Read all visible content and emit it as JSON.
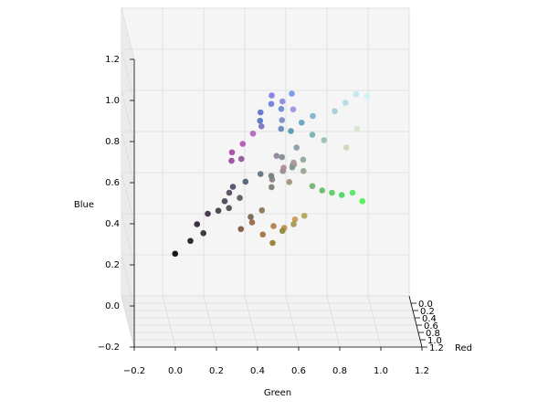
{
  "chart_data": {
    "type": "scatter3d",
    "xlabel": "Red",
    "ylabel": "Green",
    "zlabel": "Blue",
    "xlim": [
      -0.2,
      1.2
    ],
    "ylim": [
      -0.2,
      1.2
    ],
    "zlim": [
      -0.2,
      1.2
    ],
    "xticks": [
      {
        "value": 0,
        "label": "0.0"
      },
      0.2,
      0.4,
      0.6,
      0.8,
      {
        "value": 1,
        "label": "1.0"
      },
      1.2
    ],
    "yticks": [
      {
        "value": -0.2,
        "label": "−0.2"
      },
      {
        "value": 0,
        "label": "0.0"
      },
      0.2,
      0.4,
      0.6,
      0.8,
      {
        "value": 1,
        "label": "1.0"
      },
      1.2
    ],
    "zticks": [
      {
        "value": -0.2,
        "label": "−0.2"
      },
      {
        "value": 0,
        "label": "0.0"
      },
      0.2,
      0.4,
      0.6,
      0.8,
      {
        "value": 1,
        "label": "1.0"
      },
      1.2
    ],
    "grid": true,
    "color_mode": "rgb",
    "series": [
      {
        "x": [
          0.05,
          0.15,
          0.2,
          0.22,
          0.25,
          0.28,
          0.3,
          0.32,
          0.35,
          0.3,
          0.38,
          0.33,
          0.4,
          0.45,
          0.5,
          0.42,
          0.55,
          0.6,
          0.35,
          0.5,
          0.45,
          0.4,
          0.5,
          0.65,
          0.7,
          0.6,
          0.7,
          0.55,
          0.6,
          0.65,
          0.7,
          0.55,
          0.75,
          0.6,
          0.5,
          0.8,
          0.65,
          0.7,
          0.45,
          0.55,
          0.35,
          0.3,
          0.35,
          0.4,
          0.3,
          0.45,
          0.75,
          0.8,
          0.7,
          0.8,
          0.65,
          0.85,
          0.35,
          0.4,
          0.45,
          0.5,
          0.6,
          0.55,
          0.6,
          0.5,
          0.65,
          0.55,
          0.45,
          0.6,
          0.7,
          0.5,
          0.58,
          0.62,
          0.48,
          0.52,
          0.68,
          0.4,
          0.57
        ],
        "y": [
          0.05,
          0.12,
          0.15,
          0.18,
          0.2,
          0.25,
          0.28,
          0.3,
          0.3,
          0.32,
          0.35,
          0.38,
          0.45,
          0.5,
          0.5,
          0.55,
          0.55,
          0.6,
          0.45,
          0.45,
          0.6,
          0.55,
          0.55,
          0.3,
          0.35,
          0.3,
          0.4,
          0.35,
          0.4,
          0.45,
          0.5,
          0.45,
          0.55,
          0.5,
          0.35,
          0.6,
          0.6,
          0.65,
          0.4,
          0.55,
          0.8,
          0.85,
          0.9,
          0.75,
          0.95,
          0.7,
          0.9,
          0.95,
          0.85,
          0.85,
          0.8,
          0.9,
          0.6,
          0.65,
          0.7,
          0.7,
          0.75,
          0.6,
          0.55,
          0.55,
          0.6,
          0.5,
          0.5,
          0.65,
          0.6,
          0.6,
          0.52,
          0.58,
          0.5,
          0.62,
          0.55,
          0.45,
          0.65
        ],
        "z": [
          0.05,
          0.13,
          0.22,
          0.18,
          0.28,
          0.3,
          0.35,
          0.32,
          0.4,
          0.42,
          0.38,
          0.45,
          0.8,
          0.85,
          0.9,
          0.82,
          0.88,
          0.85,
          0.75,
          0.75,
          0.9,
          0.72,
          0.78,
          0.65,
          0.7,
          0.6,
          0.75,
          0.6,
          0.3,
          0.25,
          0.3,
          0.35,
          0.3,
          0.2,
          0.25,
          0.35,
          0.3,
          0.35,
          0.3,
          0.25,
          0.4,
          0.38,
          0.4,
          0.42,
          0.35,
          0.45,
          0.95,
          0.95,
          0.9,
          0.7,
          0.85,
          0.8,
          0.7,
          0.75,
          0.7,
          0.8,
          0.7,
          0.57,
          0.55,
          0.6,
          0.6,
          0.5,
          0.5,
          0.55,
          0.6,
          0.55,
          0.62,
          0.5,
          0.45,
          0.65,
          0.58,
          0.5,
          0.6
        ]
      }
    ]
  }
}
